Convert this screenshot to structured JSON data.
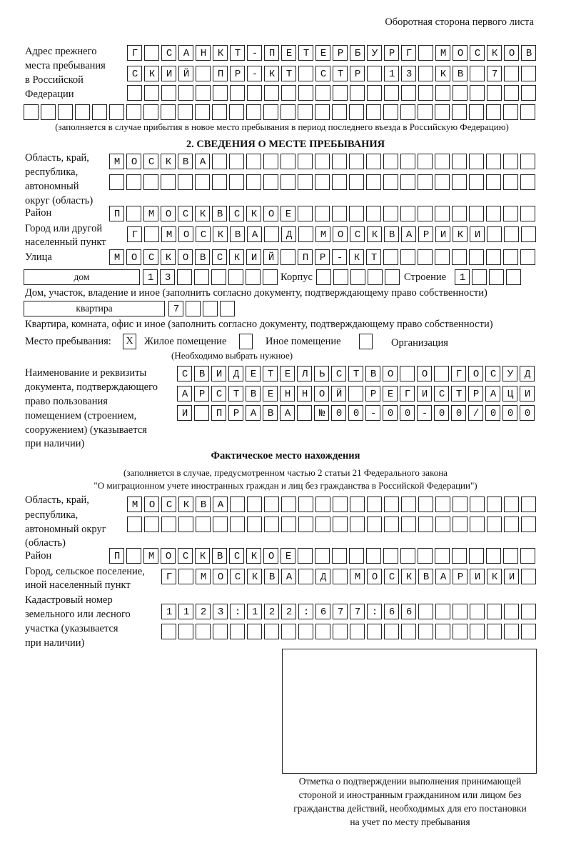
{
  "header": "Оборотная сторона первого листа",
  "previous_address": {
    "label": [
      "Адрес прежнего",
      "места пребывания",
      "в Российской",
      "Федерации"
    ],
    "rows": [
      "Г САНКТ-ПЕТЕРБУРГ МОСКОВ",
      "СКИЙ ПР-КТ СТР 13 КВ 7  ",
      "",
      ""
    ],
    "note": "(заполняется в случае прибытия в новое место пребывания в период последнего въезда в Российскую Федерацию)"
  },
  "section2": {
    "title": "2. СВЕДЕНИЯ О МЕСТЕ ПРЕБЫВАНИЯ",
    "region_label": [
      "Область, край,",
      "республика,",
      "автономный",
      "округ (область)"
    ],
    "region_rows": [
      "МОСКВА",
      ""
    ],
    "district_label": "Район",
    "district": "П МОСКВСКОЕ",
    "city_label": [
      "Город или другой",
      "населенный пункт"
    ],
    "city": "Г МОСКВА Д МОСКВАРИКИ",
    "street_label": "Улица",
    "street": "МОСКОВСКИЙ ПР-КТ",
    "house_type": "дом",
    "house_number": "13",
    "korpus_label": "Корпус",
    "korpus": "",
    "building_label": "Строение",
    "building": "1",
    "house_note": "Дом, участок, владение и иное (заполнить согласно документу, подтверждающему право собственности)",
    "apartment_type": "квартира",
    "apartment_number": "7",
    "apartment_note": "Квартира, комната, офис и иное (заполнить согласно документу, подтверждающему право собственности)",
    "stay_place_label": "Место пребывания:",
    "stay_options": [
      {
        "label": "Жилое помещение",
        "mark": "Х",
        "checked": true
      },
      {
        "label": "Иное помещение",
        "mark": "",
        "checked": false
      },
      {
        "label": "Организация",
        "mark": "",
        "checked": false
      }
    ],
    "stay_note": "(Необходимо выбрать нужное)",
    "document_label": [
      "Наименование и реквизиты",
      "документа, подтверждающего",
      "право пользования",
      "помещением (строением,",
      "сооружением) (указывается",
      "при наличии)"
    ],
    "document_rows": [
      "СВИДЕТЕЛЬСТВО О ГОСУД",
      "АРСТВЕННОЙ РЕГИСТРАЦИ",
      "И ПРАВА №00-00-00/000"
    ]
  },
  "actual_location": {
    "title": "Фактическое место нахождения",
    "note1": "(заполняется в случае, предусмотренном частью 2 статьи 21 Федерального закона",
    "note2": "\"О миграционном учете иностранных граждан и лиц без гражданства в Российской Федерации\")",
    "region_label": [
      "Область, край,",
      "республика,",
      "автономный округ",
      "(область)"
    ],
    "region_rows": [
      "МОСКВА",
      ""
    ],
    "district_label": "Район",
    "district": "П МОСКВСКОЕ",
    "city_label": [
      "Город, сельское поселение,",
      "иной населенный пункт"
    ],
    "city": "Г МОСКВА Д МОСКВАРИКИ",
    "cadastral_label": [
      "Кадастровый номер",
      "земельного или лесного",
      "участка (указывается",
      "при наличии)"
    ],
    "cadastral_rows": [
      "1123:122:677:66",
      ""
    ]
  },
  "confirmation": {
    "caption": [
      "Отметка о подтверждении выполнения принимающей",
      "стороной и иностранным гражданином или лицом без",
      "гражданства действий, необходимых для его постановки",
      "на учет по месту пребывания"
    ]
  }
}
